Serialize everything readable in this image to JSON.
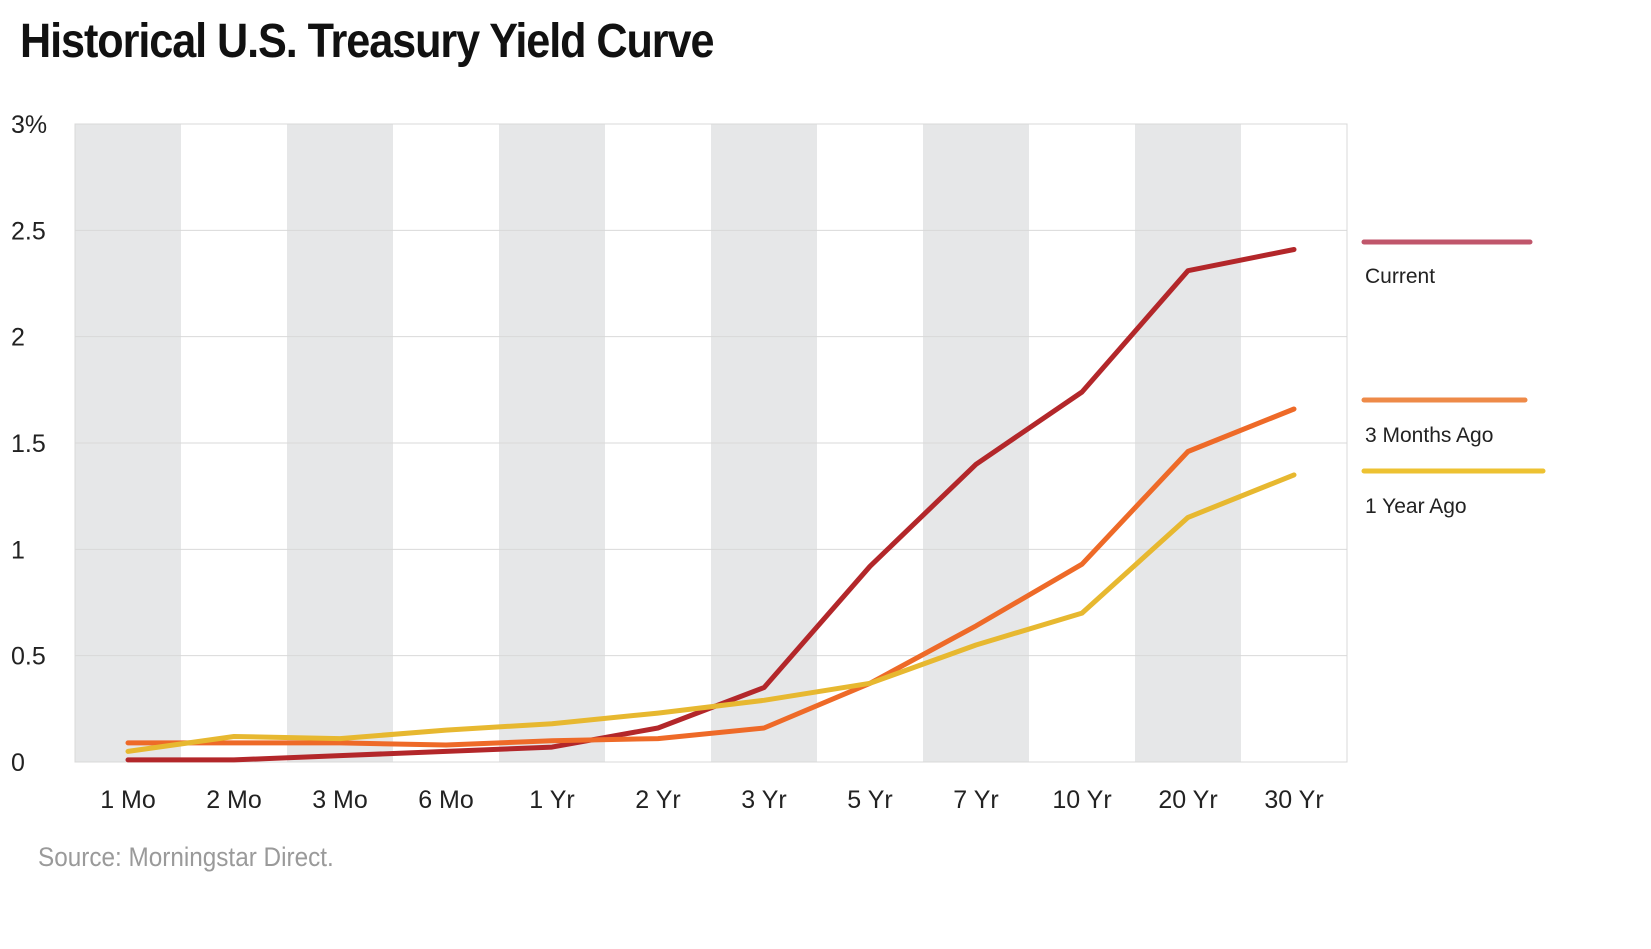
{
  "title": "Historical U.S. Treasury Yield Curve",
  "source": "Source: Morningstar Direct.",
  "chart_data": {
    "type": "line",
    "title": "Historical U.S. Treasury Yield Curve",
    "xlabel": "",
    "ylabel": "",
    "categories": [
      "1 Mo",
      "2 Mo",
      "3 Mo",
      "6 Mo",
      "1 Yr",
      "2 Yr",
      "3 Yr",
      "5 Yr",
      "7 Yr",
      "10 Yr",
      "20 Yr",
      "30 Yr"
    ],
    "ylim": [
      0,
      3
    ],
    "y_ticks": [
      0,
      0.5,
      1,
      1.5,
      2,
      2.5,
      3
    ],
    "y_tick_labels": [
      "0",
      "0.5",
      "1",
      "1.5",
      "2",
      "2.5",
      "3%"
    ],
    "grid": true,
    "alternating_column_shading": true,
    "legend_position": "right",
    "series": [
      {
        "name": "Current",
        "color": "#B3272A",
        "legend_color": "#C0566B",
        "values": [
          0.01,
          0.01,
          0.03,
          0.05,
          0.07,
          0.16,
          0.35,
          0.92,
          1.4,
          1.74,
          2.31,
          2.41
        ]
      },
      {
        "name": "3 Months Ago",
        "color": "#EE6A28",
        "legend_color": "#EE8A48",
        "values": [
          0.09,
          0.09,
          0.09,
          0.08,
          0.1,
          0.11,
          0.16,
          0.37,
          0.64,
          0.93,
          1.46,
          1.66
        ]
      },
      {
        "name": "1 Year Ago",
        "color": "#E7B830",
        "legend_color": "#EDC232",
        "values": [
          0.05,
          0.12,
          0.11,
          0.15,
          0.18,
          0.23,
          0.29,
          0.37,
          0.55,
          0.7,
          1.15,
          1.35
        ]
      }
    ]
  }
}
